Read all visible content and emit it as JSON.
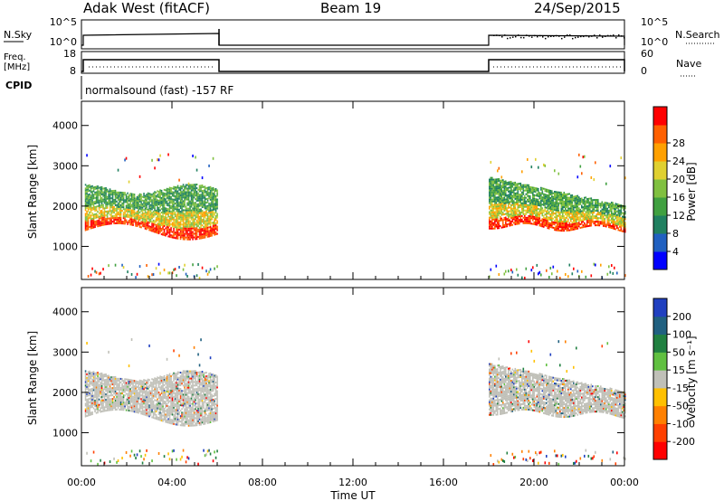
{
  "header": {
    "station": "Adak West (fitACF)",
    "beam": "Beam 19",
    "date": "24/Sep/2015"
  },
  "summary": {
    "nsky_label": "N.Sky",
    "nsearch_label": "N.Search",
    "noise_ticks": [
      "10^5",
      "10^0"
    ],
    "freq_label_1": "Freq.",
    "freq_label_2": "[MHz]",
    "freq_ticks": [
      "18",
      "8"
    ],
    "nave_label": "Nave",
    "nave_ticks": [
      "60",
      "0"
    ],
    "cpid_label": "CPID",
    "cpid_text": "normalsound (fast) -157 RF"
  },
  "chart_data": [
    {
      "type": "heatmap",
      "name": "power",
      "ylabel": "Slant Range [km]",
      "xlabel": "Time UT",
      "x_ticks": [
        "00:00",
        "04:00",
        "08:00",
        "12:00",
        "16:00",
        "20:00",
        "00:00"
      ],
      "xlim_hours": [
        0,
        24
      ],
      "ylim_km": [
        180,
        4600
      ],
      "y_ticks": [
        1000,
        2000,
        3000,
        4000
      ],
      "data_gap_hours": [
        6,
        18
      ],
      "colorbar": {
        "label": "Power [dB]",
        "ticks": [
          4,
          8,
          12,
          16,
          20,
          24,
          28
        ],
        "colors": [
          "#0000ff",
          "#2060c0",
          "#208060",
          "#40a040",
          "#80c040",
          "#e0d030",
          "#ffa000",
          "#ff6000",
          "#ff0000"
        ]
      }
    },
    {
      "type": "heatmap",
      "name": "velocity",
      "ylabel": "Slant Range [km]",
      "xlabel": "Time UT",
      "x_ticks": [
        "00:00",
        "04:00",
        "08:00",
        "12:00",
        "16:00",
        "20:00",
        "00:00"
      ],
      "xlim_hours": [
        0,
        24
      ],
      "ylim_km": [
        180,
        4600
      ],
      "y_ticks": [
        1000,
        2000,
        3000,
        4000
      ],
      "colorbar": {
        "label": "Velocity [m s⁻¹]",
        "ticks": [
          200,
          100,
          50,
          15,
          -15,
          -50,
          -100,
          -200
        ],
        "colors": [
          "#2040c0",
          "#206080",
          "#208040",
          "#60c040",
          "#c0c0b8",
          "#ffc000",
          "#ff8000",
          "#ff4000",
          "#ff0000"
        ]
      }
    }
  ],
  "xaxis_title": "Time UT"
}
